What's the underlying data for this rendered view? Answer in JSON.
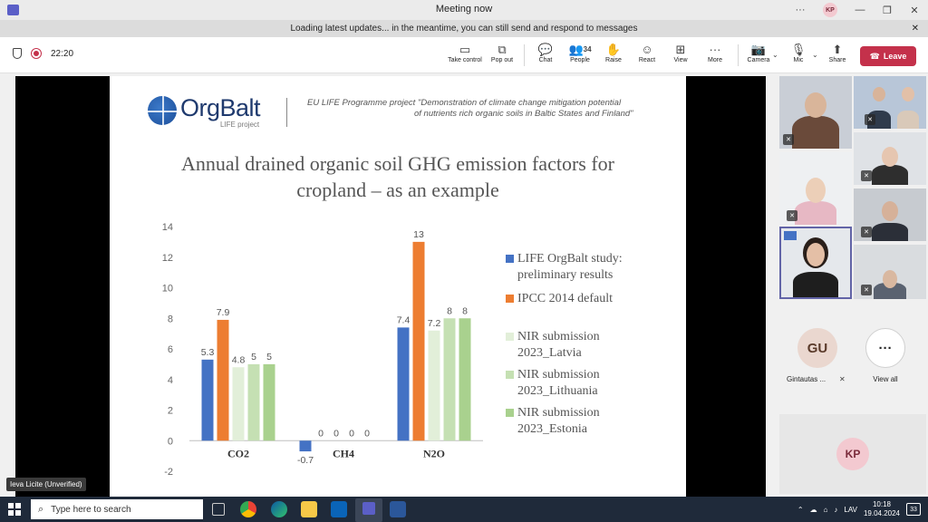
{
  "window": {
    "title": "Meeting now",
    "more": "···",
    "user_initials": "KP",
    "minimize": "—",
    "restore": "❐",
    "close": "✕"
  },
  "banner": {
    "text": "Loading latest updates... in the meantime, you can still send and respond to messages",
    "close": "✕"
  },
  "toolbar": {
    "timer": "22:20",
    "take_control": {
      "label": "Take control",
      "icon": "▭"
    },
    "pop_out": {
      "label": "Pop out",
      "icon": "⧉"
    },
    "chat": {
      "label": "Chat",
      "icon": "💬"
    },
    "people": {
      "label": "People",
      "count": "34",
      "icon": "👥"
    },
    "raise": {
      "label": "Raise",
      "icon": "✋"
    },
    "react": {
      "label": "React",
      "icon": "☺"
    },
    "view": {
      "label": "View",
      "icon": "⊞"
    },
    "more": {
      "label": "More",
      "icon": "···"
    },
    "camera": {
      "label": "Camera",
      "icon": "📷"
    },
    "mic": {
      "label": "Mic",
      "icon": "🎙"
    },
    "share": {
      "label": "Share",
      "icon": "⬆"
    },
    "leave": {
      "label": "Leave",
      "icon": "☎"
    }
  },
  "slide": {
    "logo": "OrgBalt",
    "logo_sub": "LIFE project",
    "project_line1": "EU LIFE Programme project \"Demonstration of climate change mitigation potential",
    "project_line2": "of nutrients rich organic soils in Baltic States and Finland\"",
    "title_line1": "Annual drained organic soil GHG emission factors for",
    "title_line2": "cropland – as an example"
  },
  "chart_data": {
    "type": "bar",
    "categories": [
      "CO2",
      "CH4",
      "N2O"
    ],
    "ylim": [
      -2,
      14
    ],
    "yticks": [
      "14",
      "12",
      "10",
      "8",
      "6",
      "4",
      "2",
      "0",
      "-2"
    ],
    "series": [
      {
        "name": "LIFE OrgBalt study: preliminary results",
        "color": "#4472c4",
        "values": [
          5.3,
          -0.7,
          7.4
        ]
      },
      {
        "name": "IPCC 2014 default",
        "color": "#ed7d31",
        "values": [
          7.9,
          0,
          13
        ]
      },
      {
        "name": "NIR submission 2023_Latvia",
        "color": "#e2efd9",
        "values": [
          4.8,
          0,
          7.2
        ]
      },
      {
        "name": "NIR submission 2023_Lithuania",
        "color": "#c5e0b3",
        "values": [
          5,
          0,
          8
        ]
      },
      {
        "name": "NIR submission 2023_Estonia",
        "color": "#a9d18e",
        "values": [
          5,
          0,
          8
        ]
      }
    ],
    "data_labels": [
      [
        "5.3",
        "-0.7",
        "7.4"
      ],
      [
        "7.9",
        "0",
        "13"
      ],
      [
        "4.8",
        "0",
        "7.2"
      ],
      [
        "5",
        "0",
        "8"
      ],
      [
        "5",
        "0",
        "8"
      ]
    ],
    "legend": {
      "s1_l1": "LIFE OrgBalt study:",
      "s1_l2": "preliminary results",
      "s2_l1": "IPCC 2014 default",
      "s3_l1": "NIR submission",
      "s3_l2": "2023_Latvia",
      "s4_l1": "NIR submission",
      "s4_l2": "2023_Lithuania",
      "s5_l1": "NIR submission",
      "s5_l2": "2023_Estonia"
    },
    "legend_position": "right",
    "grid": false
  },
  "shared_by": "Ieva Licite (Unverified)",
  "participants": {
    "gu": {
      "initials": "GU",
      "name": "Gintautas ..."
    },
    "view_all": {
      "icon": "···",
      "label": "View all"
    },
    "kp": {
      "initials": "KP"
    }
  },
  "taskbar": {
    "search_placeholder": "Type here to search",
    "language": "LAV",
    "time": "10:18",
    "date": "19.04.2024",
    "notifications": "33"
  }
}
